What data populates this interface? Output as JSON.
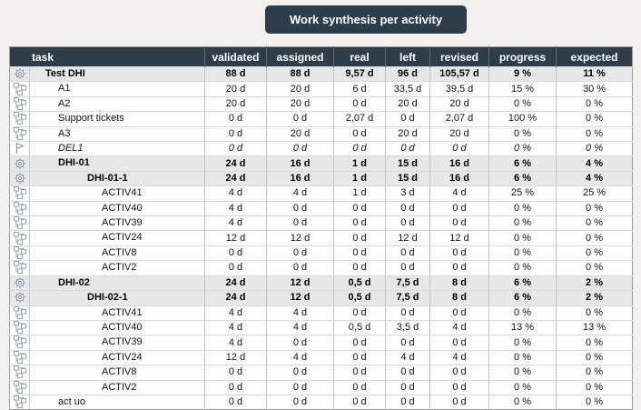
{
  "title": "Work synthesis per activity",
  "colors": {
    "header_bg": "#2e3d4c",
    "title_button_bg": "#2e3d4c",
    "section_row_bg": "#e7e7e7",
    "page_bg": "#f2f1ef",
    "icon_color": "#8593a8"
  },
  "table": {
    "columns": [
      {
        "key": "task",
        "label": "task"
      },
      {
        "key": "validated",
        "label": "validated"
      },
      {
        "key": "assigned",
        "label": "assigned"
      },
      {
        "key": "real",
        "label": "real"
      },
      {
        "key": "left",
        "label": "left"
      },
      {
        "key": "revised",
        "label": "revised"
      },
      {
        "key": "progress",
        "label": "progress"
      },
      {
        "key": "expected",
        "label": "expected"
      }
    ],
    "rows": [
      {
        "task": "Test DHI",
        "icon": "gear",
        "level": 0,
        "style": "section",
        "validated": "88 d",
        "assigned": "88 d",
        "real": "9,57 d",
        "left": "96 d",
        "revised": "105,57 d",
        "progress": "9 %",
        "expected": "11 %"
      },
      {
        "task": "A1",
        "icon": "sitemap",
        "level": 1,
        "style": "normal",
        "validated": "20 d",
        "assigned": "20 d",
        "real": "6 d",
        "left": "33,5 d",
        "revised": "39,5 d",
        "progress": "15 %",
        "expected": "30 %"
      },
      {
        "task": "A2",
        "icon": "sitemap",
        "level": 1,
        "style": "normal",
        "validated": "20 d",
        "assigned": "20 d",
        "real": "0 d",
        "left": "20 d",
        "revised": "20 d",
        "progress": "0 %",
        "expected": "0 %"
      },
      {
        "task": "Support tickets",
        "icon": "sitemap",
        "level": 1,
        "style": "normal",
        "validated": "0 d",
        "assigned": "0 d",
        "real": "2,07 d",
        "left": "0 d",
        "revised": "2,07 d",
        "progress": "100 %",
        "expected": "0 %"
      },
      {
        "task": "A3",
        "icon": "sitemap",
        "level": 1,
        "style": "normal",
        "validated": "0 d",
        "assigned": "20 d",
        "real": "0 d",
        "left": "20 d",
        "revised": "20 d",
        "progress": "0 %",
        "expected": "0 %"
      },
      {
        "task": "DEL1",
        "icon": "flag",
        "level": 1,
        "style": "milestone",
        "validated": "0 d",
        "assigned": "0 d",
        "real": "0 d",
        "left": "0 d",
        "revised": "0 d",
        "progress": "0 %",
        "expected": "0 %"
      },
      {
        "task": "DHI-01",
        "icon": "gear",
        "level": 1,
        "style": "section",
        "validated": "24 d",
        "assigned": "16 d",
        "real": "1 d",
        "left": "15 d",
        "revised": "16 d",
        "progress": "6 %",
        "expected": "4 %"
      },
      {
        "task": "DHI-01-1",
        "icon": "gear",
        "level": 2,
        "style": "section",
        "validated": "24 d",
        "assigned": "16 d",
        "real": "1 d",
        "left": "15 d",
        "revised": "16 d",
        "progress": "6 %",
        "expected": "4 %"
      },
      {
        "task": "ACTIV41",
        "icon": "sitemap",
        "level": 3,
        "style": "normal",
        "validated": "4 d",
        "assigned": "4 d",
        "real": "1 d",
        "left": "3 d",
        "revised": "4 d",
        "progress": "25 %",
        "expected": "25 %"
      },
      {
        "task": "ACTIV40",
        "icon": "sitemap",
        "level": 3,
        "style": "normal",
        "validated": "4 d",
        "assigned": "0 d",
        "real": "0 d",
        "left": "0 d",
        "revised": "0 d",
        "progress": "0 %",
        "expected": "0 %"
      },
      {
        "task": "ACTIV39",
        "icon": "sitemap",
        "level": 3,
        "style": "normal",
        "validated": "4 d",
        "assigned": "0 d",
        "real": "0 d",
        "left": "0 d",
        "revised": "0 d",
        "progress": "0 %",
        "expected": "0 %"
      },
      {
        "task": "ACTIV24",
        "icon": "sitemap",
        "level": 3,
        "style": "normal",
        "validated": "12 d",
        "assigned": "12 d",
        "real": "0 d",
        "left": "12 d",
        "revised": "12 d",
        "progress": "0 %",
        "expected": "0 %"
      },
      {
        "task": "ACTIV8",
        "icon": "sitemap",
        "level": 3,
        "style": "normal",
        "validated": "0 d",
        "assigned": "0 d",
        "real": "0 d",
        "left": "0 d",
        "revised": "0 d",
        "progress": "0 %",
        "expected": "0 %"
      },
      {
        "task": "ACTIV2",
        "icon": "sitemap",
        "level": 3,
        "style": "normal",
        "validated": "0 d",
        "assigned": "0 d",
        "real": "0 d",
        "left": "0 d",
        "revised": "0 d",
        "progress": "0 %",
        "expected": "0 %"
      },
      {
        "task": "DHI-02",
        "icon": "gear",
        "level": 1,
        "style": "section",
        "validated": "24 d",
        "assigned": "12 d",
        "real": "0,5 d",
        "left": "7,5 d",
        "revised": "8 d",
        "progress": "6 %",
        "expected": "2 %"
      },
      {
        "task": "DHI-02-1",
        "icon": "gear",
        "level": 2,
        "style": "section",
        "validated": "24 d",
        "assigned": "12 d",
        "real": "0,5 d",
        "left": "7,5 d",
        "revised": "8 d",
        "progress": "6 %",
        "expected": "2 %"
      },
      {
        "task": "ACTIV41",
        "icon": "sitemap",
        "level": 3,
        "style": "normal",
        "validated": "4 d",
        "assigned": "4 d",
        "real": "0 d",
        "left": "0 d",
        "revised": "0 d",
        "progress": "0 %",
        "expected": "0 %"
      },
      {
        "task": "ACTIV40",
        "icon": "sitemap",
        "level": 3,
        "style": "normal",
        "validated": "4 d",
        "assigned": "4 d",
        "real": "0,5 d",
        "left": "3,5 d",
        "revised": "4 d",
        "progress": "13 %",
        "expected": "13 %"
      },
      {
        "task": "ACTIV39",
        "icon": "sitemap",
        "level": 3,
        "style": "normal",
        "validated": "4 d",
        "assigned": "0 d",
        "real": "0 d",
        "left": "0 d",
        "revised": "0 d",
        "progress": "0 %",
        "expected": "0 %"
      },
      {
        "task": "ACTIV24",
        "icon": "sitemap",
        "level": 3,
        "style": "normal",
        "validated": "12 d",
        "assigned": "4 d",
        "real": "0 d",
        "left": "4 d",
        "revised": "4 d",
        "progress": "0 %",
        "expected": "0 %"
      },
      {
        "task": "ACTIV8",
        "icon": "sitemap",
        "level": 3,
        "style": "normal",
        "validated": "0 d",
        "assigned": "0 d",
        "real": "0 d",
        "left": "0 d",
        "revised": "0 d",
        "progress": "0 %",
        "expected": "0 %"
      },
      {
        "task": "ACTIV2",
        "icon": "sitemap",
        "level": 3,
        "style": "normal",
        "validated": "0 d",
        "assigned": "0 d",
        "real": "0 d",
        "left": "0 d",
        "revised": "0 d",
        "progress": "0 %",
        "expected": "0 %"
      },
      {
        "task": "act uo",
        "icon": "sitemap",
        "level": 1,
        "style": "normal",
        "validated": "0 d",
        "assigned": "0 d",
        "real": "0 d",
        "left": "0 d",
        "revised": "0 d",
        "progress": "0 %",
        "expected": "0 %"
      }
    ]
  }
}
